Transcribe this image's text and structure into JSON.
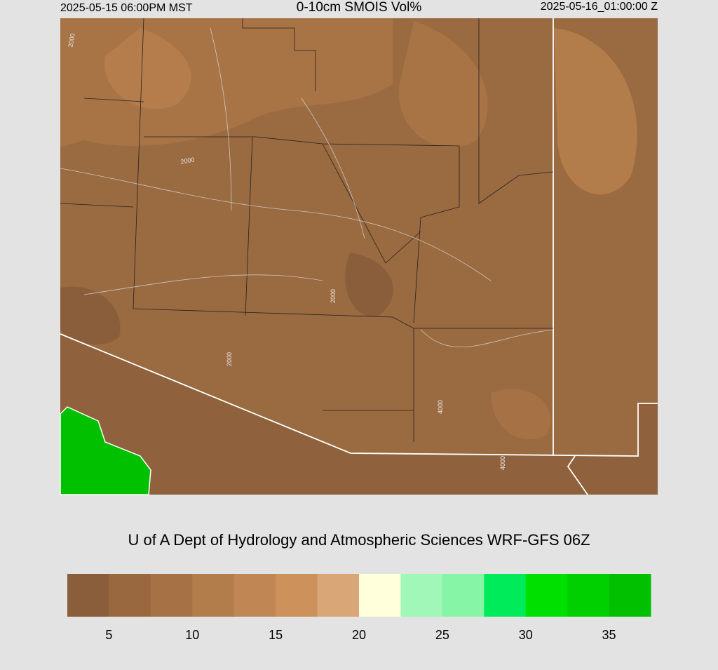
{
  "header": {
    "valid_local": "2025-05-15 06:00PM MST",
    "title": "0-10cm SMOIS Vol%",
    "valid_utc": "2025-05-16_01:00:00 Z"
  },
  "map": {
    "contour_labels": [
      "2000",
      "2000",
      "2000",
      "2000",
      "4000",
      "4000"
    ]
  },
  "credit": "U of A Dept of Hydrology and Atmospheric Sciences WRF-GFS 06Z",
  "colorbar": {
    "range": [
      2.5,
      37.5
    ],
    "colors": [
      "#8b5e3b",
      "#99683f",
      "#a67245",
      "#b37c4b",
      "#c08754",
      "#cd925c",
      "#d8a677",
      "#ffffdc",
      "#a0f7b8",
      "#87f5a6",
      "#00eb59",
      "#00e000",
      "#00d000",
      "#00c000"
    ],
    "ticks": [
      5,
      10,
      15,
      20,
      25,
      30,
      35
    ]
  }
}
